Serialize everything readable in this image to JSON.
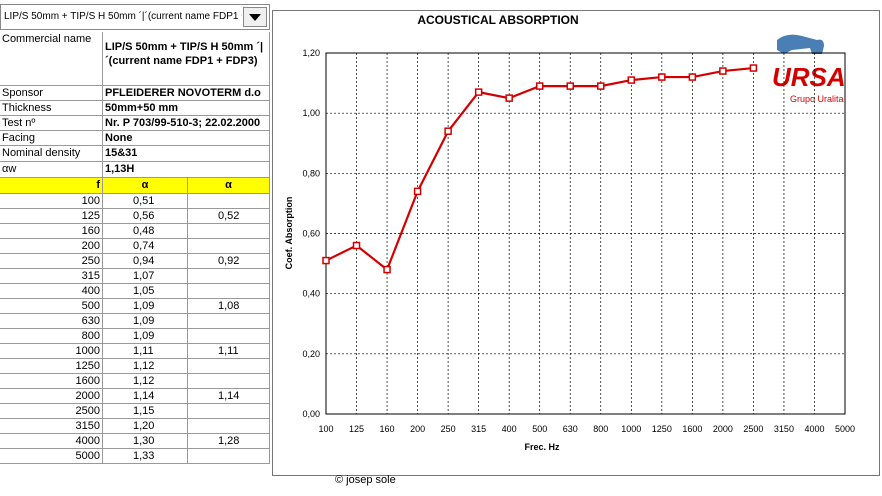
{
  "dropdown": {
    "text": "LIP/S 50mm + TIP/S H 50mm ´|´(current name FDP1 +"
  },
  "info": [
    {
      "label": "Commercial name",
      "value": "LIP/S 50mm + TIP/S H 50mm ´|´(current name FDP1 + FDP3)"
    },
    {
      "label": "Sponsor",
      "value": "PFLEIDERER NOVOTERM d.o"
    },
    {
      "label": "Thickness",
      "value": "50mm+50 mm"
    },
    {
      "label": "Test nº",
      "value": "Nr. P 703/99-510-3; 22.02.2000"
    },
    {
      "label": "Facing",
      "value": "None"
    },
    {
      "label": "Nominal density",
      "value": "15&31"
    },
    {
      "label": "αw",
      "value": "1,13H"
    }
  ],
  "table": {
    "header": [
      "f",
      "α",
      "α"
    ],
    "rows": [
      [
        "100",
        "0,51"
      ],
      [
        "125",
        "0,56",
        "0,52"
      ],
      [
        "160",
        "0,48"
      ],
      [
        "200",
        "0,74"
      ],
      [
        "250",
        "0,94",
        "0,92"
      ],
      [
        "315",
        "1,07"
      ],
      [
        "400",
        "1,05"
      ],
      [
        "500",
        "1,09",
        "1,08"
      ],
      [
        "630",
        "1,09"
      ],
      [
        "800",
        "1,09"
      ],
      [
        "1000",
        "1,11",
        "1,11"
      ],
      [
        "1250",
        "1,12"
      ],
      [
        "1600",
        "1,12"
      ],
      [
        "2000",
        "1,14",
        "1,14"
      ],
      [
        "2500",
        "1,15"
      ],
      [
        "3150",
        "1,20"
      ],
      [
        "4000",
        "1,30",
        "1,28"
      ],
      [
        "5000",
        "1,33"
      ]
    ]
  },
  "chart_data": {
    "type": "line",
    "title": "ACOUSTICAL ABSORPTION",
    "x_label": "Frec. Hz",
    "y_label": "Coef. Absorption",
    "categories": [
      "100",
      "125",
      "160",
      "200",
      "250",
      "315",
      "400",
      "500",
      "630",
      "800",
      "1000",
      "1250",
      "1600",
      "2000",
      "2500",
      "3150",
      "4000",
      "5000"
    ],
    "series": [
      {
        "name": "α",
        "color": "#d40000",
        "values": [
          0.51,
          0.56,
          0.48,
          0.74,
          0.94,
          1.07,
          1.05,
          1.09,
          1.09,
          1.09,
          1.11,
          1.12,
          1.12,
          1.14,
          1.15,
          null,
          null,
          null
        ]
      }
    ],
    "ylim": [
      0,
      1.2
    ],
    "yticks": [
      {
        "value": 0,
        "label": "0,00"
      },
      {
        "value": 0.2,
        "label": "0,20"
      },
      {
        "value": 0.4,
        "label": "0,40"
      },
      {
        "value": 0.6,
        "label": "0,60"
      },
      {
        "value": 0.8,
        "label": "0,80"
      },
      {
        "value": 1,
        "label": "1,00"
      },
      {
        "value": 1.2,
        "label": "1,20"
      }
    ],
    "grid": true
  },
  "logo": {
    "brand": "URSA",
    "group": "Grupo Uralita"
  },
  "footer": "© josep sole"
}
